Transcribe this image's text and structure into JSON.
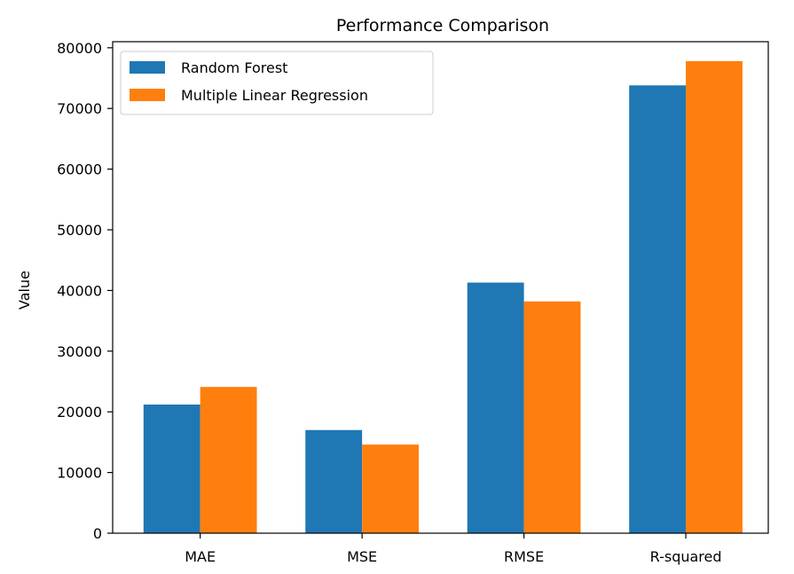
{
  "chart_data": {
    "type": "bar",
    "title": "Performance Comparison",
    "xlabel": "",
    "ylabel": "Value",
    "categories": [
      "MAE",
      "MSE",
      "RMSE",
      "R-squared"
    ],
    "series": [
      {
        "name": "Random Forest",
        "color": "#1f77b4",
        "values": [
          21200,
          17000,
          41300,
          73800
        ]
      },
      {
        "name": "Multiple Linear Regression",
        "color": "#ff7f0e",
        "values": [
          24100,
          14600,
          38200,
          77800
        ]
      }
    ],
    "ylim": [
      0,
      81000
    ],
    "yticks": [
      0,
      10000,
      20000,
      30000,
      40000,
      50000,
      60000,
      70000,
      80000
    ],
    "grid": false,
    "legend_position": "top-left"
  }
}
